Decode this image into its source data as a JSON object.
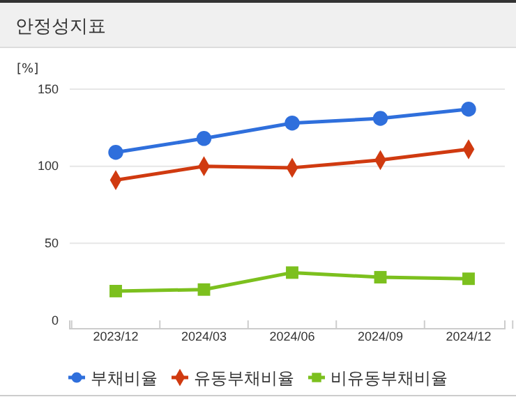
{
  "chart_data": {
    "type": "line",
    "title": "안정성지표",
    "ylabel": "[%]",
    "categories": [
      "2023/12",
      "2024/03",
      "2024/06",
      "2024/09",
      "2024/12"
    ],
    "series": [
      {
        "name": "부채비율",
        "color": "#2f6fdc",
        "marker": "circle",
        "values": [
          109,
          118,
          128,
          131,
          137
        ]
      },
      {
        "name": "유동부채비율",
        "color": "#d03a10",
        "marker": "diamond",
        "values": [
          91,
          100,
          99,
          104,
          111
        ]
      },
      {
        "name": "비유동부채비율",
        "color": "#7cc01e",
        "marker": "square",
        "values": [
          19,
          20,
          31,
          28,
          27
        ]
      }
    ],
    "ylim": [
      0,
      150
    ],
    "yticks": [
      0,
      50,
      100,
      150
    ],
    "grid": "y",
    "legend": "bottom"
  }
}
